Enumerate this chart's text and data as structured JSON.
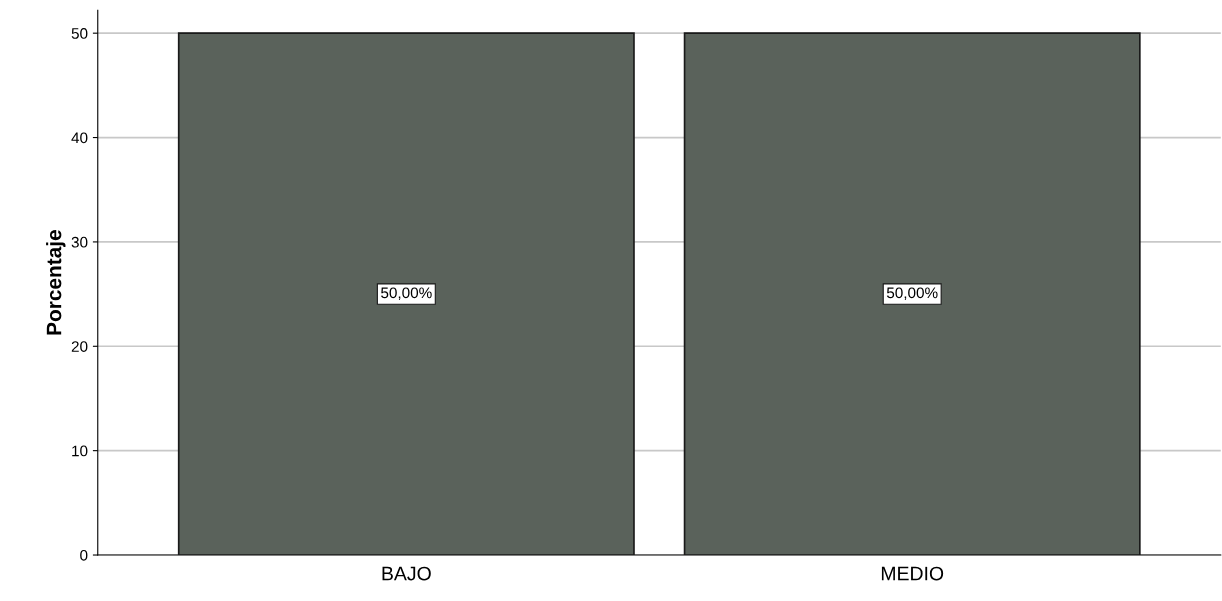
{
  "chart_data": {
    "type": "bar",
    "ylabel": "Porcentaje",
    "categories": [
      "BAJO",
      "MEDIO"
    ],
    "values": [
      50,
      50
    ],
    "color": "#5a625b",
    "value_labels": [
      "50,00%",
      "50,00%"
    ],
    "ylim": [
      0,
      52.2
    ],
    "yticks": [
      0,
      10,
      20,
      30,
      40,
      50
    ],
    "grid": "y",
    "legend": false
  }
}
